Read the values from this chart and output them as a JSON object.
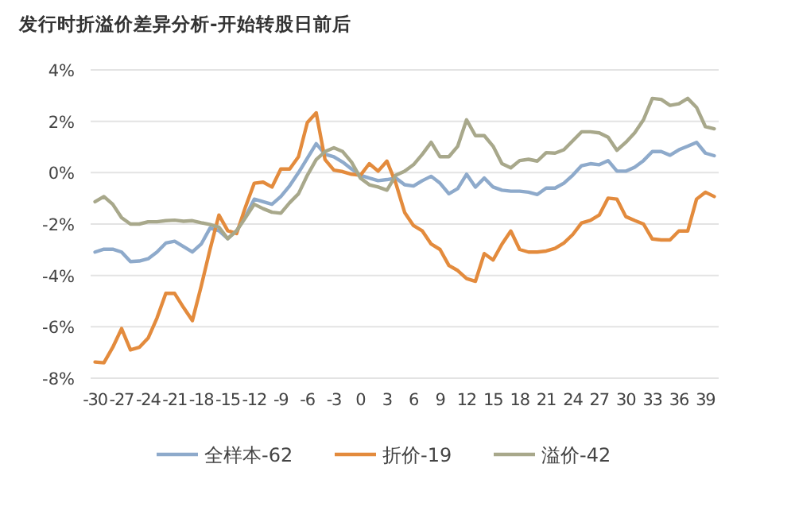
{
  "chart_data": {
    "type": "line",
    "title": "发行时折溢价差异分析-开始转股日前后",
    "x": [
      -30,
      -29,
      -28,
      -27,
      -26,
      -25,
      -24,
      -23,
      -22,
      -21,
      -20,
      -19,
      -18,
      -17,
      -16,
      -15,
      -14,
      -13,
      -12,
      -11,
      -10,
      -9,
      -8,
      -7,
      -6,
      -5,
      -4,
      -3,
      -2,
      -1,
      0,
      1,
      2,
      3,
      4,
      5,
      6,
      7,
      8,
      9,
      10,
      11,
      12,
      13,
      14,
      15,
      16,
      17,
      18,
      19,
      20,
      21,
      22,
      23,
      24,
      25,
      26,
      27,
      28,
      29,
      30,
      31,
      32,
      33,
      34,
      35,
      36,
      37,
      38,
      39,
      40
    ],
    "series": [
      {
        "name": "全样本-62",
        "color": "#8eaacb",
        "values": [
          -3.09,
          -2.98,
          -2.98,
          -3.09,
          -3.46,
          -3.44,
          -3.35,
          -3.09,
          -2.74,
          -2.67,
          -2.88,
          -3.09,
          -2.78,
          -2.16,
          -2.26,
          -2.57,
          -2.26,
          -1.71,
          -1.03,
          -1.13,
          -1.23,
          -0.93,
          -0.51,
          0,
          0.56,
          1.13,
          0.72,
          0.62,
          0.41,
          0.14,
          -0.1,
          -0.21,
          -0.31,
          -0.27,
          -0.21,
          -0.47,
          -0.52,
          -0.31,
          -0.14,
          -0.41,
          -0.82,
          -0.62,
          -0.06,
          -0.56,
          -0.21,
          -0.56,
          -0.68,
          -0.72,
          -0.72,
          -0.76,
          -0.85,
          -0.6,
          -0.6,
          -0.41,
          -0.1,
          0.27,
          0.35,
          0.31,
          0.47,
          0.06,
          0.06,
          0.21,
          0.47,
          0.82,
          0.82,
          0.68,
          0.89,
          1.03,
          1.18,
          0.76,
          0.66
        ]
      },
      {
        "name": "折价-19",
        "color": "#e38b3d",
        "values": [
          -7.37,
          -7.4,
          -6.8,
          -6.07,
          -6.9,
          -6.8,
          -6.44,
          -5.66,
          -4.7,
          -4.7,
          -5.25,
          -5.76,
          -4.42,
          -2.98,
          -1.65,
          -2.26,
          -2.37,
          -1.34,
          -0.41,
          -0.37,
          -0.56,
          0.14,
          0.14,
          0.62,
          1.95,
          2.33,
          0.51,
          0.1,
          0.04,
          -0.06,
          -0.1,
          0.35,
          0.06,
          0.45,
          -0.41,
          -1.55,
          -2.06,
          -2.27,
          -2.78,
          -2.99,
          -3.61,
          -3.81,
          -4.12,
          -4.23,
          -3.15,
          -3.4,
          -2.78,
          -2.27,
          -2.99,
          -3.09,
          -3.09,
          -3.05,
          -2.95,
          -2.74,
          -2.41,
          -1.96,
          -1.86,
          -1.65,
          -0.99,
          -1.03,
          -1.71,
          -1.86,
          -2.0,
          -2.58,
          -2.62,
          -2.62,
          -2.27,
          -2.27,
          -1.03,
          -0.76,
          -0.93
        ]
      },
      {
        "name": "溢价-42",
        "color": "#a8a88b",
        "values": [
          -1.13,
          -0.93,
          -1.23,
          -1.75,
          -2.0,
          -2.0,
          -1.91,
          -1.91,
          -1.87,
          -1.85,
          -1.89,
          -1.87,
          -1.95,
          -2.02,
          -2.12,
          -2.57,
          -2.26,
          -1.75,
          -1.23,
          -1.4,
          -1.54,
          -1.58,
          -1.17,
          -0.82,
          -0.1,
          0.51,
          0.82,
          0.97,
          0.82,
          0.41,
          -0.21,
          -0.47,
          -0.56,
          -0.68,
          -0.1,
          0.06,
          0.31,
          0.72,
          1.18,
          0.62,
          0.62,
          1.03,
          2.06,
          1.44,
          1.44,
          1.03,
          0.35,
          0.19,
          0.47,
          0.52,
          0.45,
          0.78,
          0.76,
          0.89,
          1.24,
          1.59,
          1.59,
          1.55,
          1.38,
          0.87,
          1.18,
          1.55,
          2.06,
          2.89,
          2.85,
          2.62,
          2.68,
          2.89,
          2.54,
          1.79,
          1.71
        ]
      }
    ],
    "xlim": [
      -30.5,
      40.5
    ],
    "xticks": [
      -30,
      -27,
      -24,
      -21,
      -18,
      -15,
      -12,
      -9,
      -6,
      -3,
      0,
      3,
      6,
      9,
      12,
      15,
      18,
      21,
      24,
      27,
      30,
      33,
      36,
      39
    ],
    "ylim": [
      -8,
      4
    ],
    "yticks": [
      {
        "value": -8,
        "label": "-8%"
      },
      {
        "value": -6,
        "label": "-6%"
      },
      {
        "value": -4,
        "label": "-4%"
      },
      {
        "value": -2,
        "label": "-2%"
      },
      {
        "value": 0,
        "label": "0%"
      },
      {
        "value": 2,
        "label": "2%"
      },
      {
        "value": 4,
        "label": "4%"
      }
    ],
    "grid": "y",
    "legend": "bottom",
    "marker": "none",
    "line_style": "solid"
  }
}
